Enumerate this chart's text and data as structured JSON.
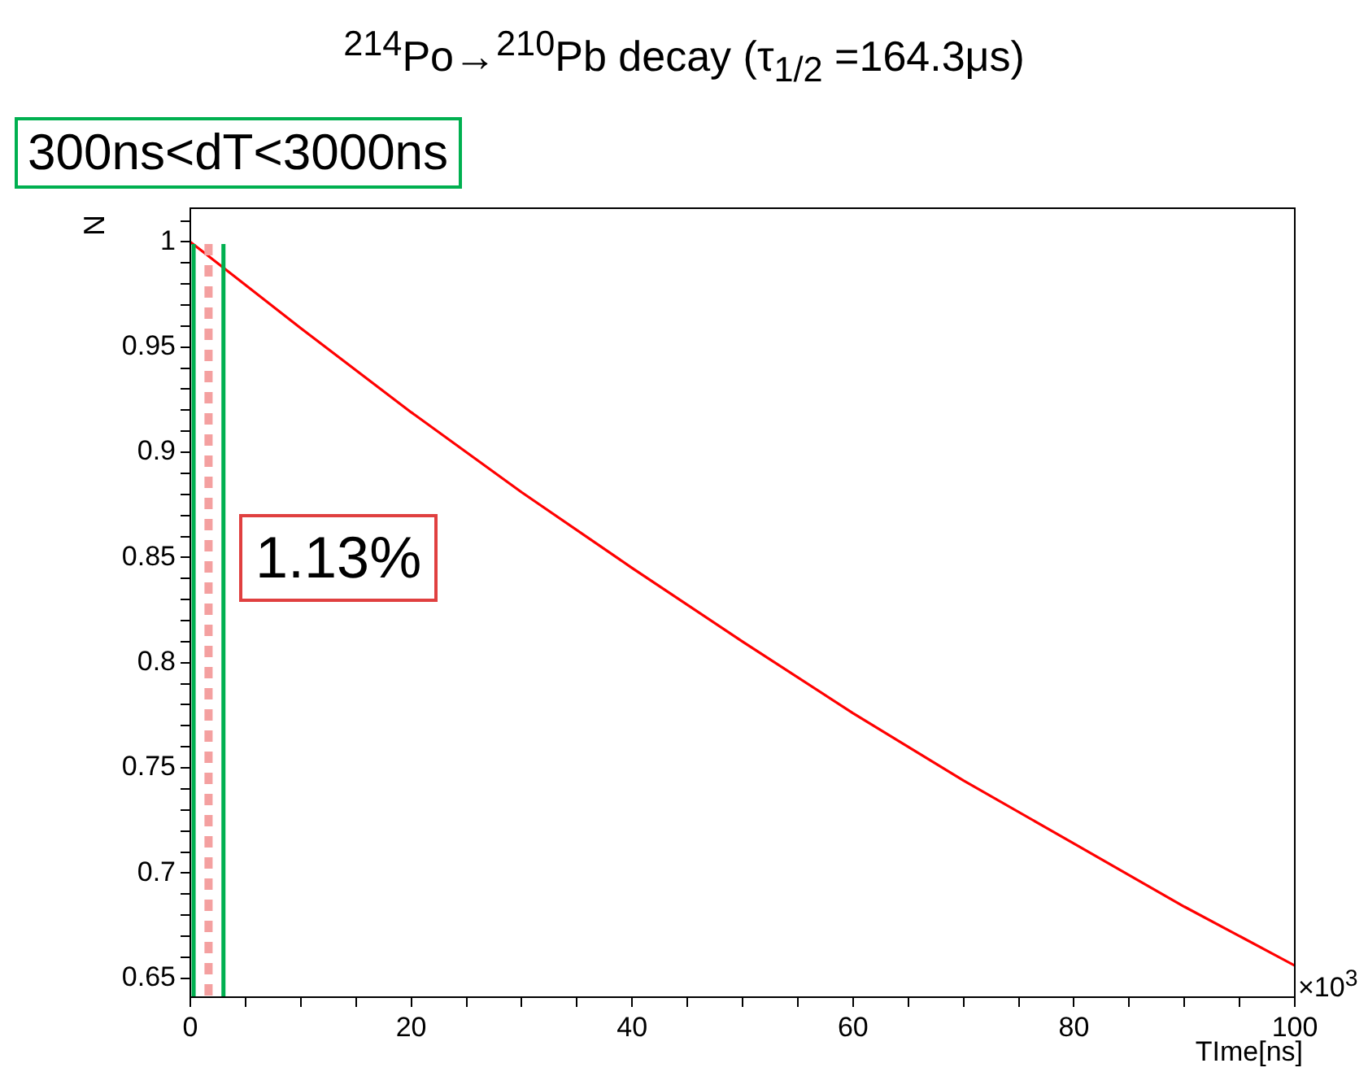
{
  "chart_data": {
    "type": "line",
    "title": "$^{214}$Po→$^{210}$Pb   decay (τ$_{1/2}$ =164.3μs)",
    "xlabel": "TIme[ns]",
    "ylabel": "N",
    "x": [
      0,
      10,
      20,
      30,
      40,
      50,
      60,
      70,
      80,
      90,
      100
    ],
    "series": [
      {
        "color": "#ff0000",
        "values": [
          1,
          0.959,
          0.919,
          0.881,
          0.845,
          0.81,
          0.776,
          0.744,
          0.714,
          0.684,
          0.656
        ]
      }
    ],
    "xlim": [
      0,
      100
    ],
    "ylim": [
      0.641,
      1.016
    ],
    "xticks": [
      0,
      {
        "value": 5,
        "label": null
      },
      {
        "value": 10,
        "label": null
      },
      {
        "value": 15,
        "label": null
      },
      20,
      {
        "value": 25,
        "label": null
      },
      {
        "value": 30,
        "label": null
      },
      {
        "value": 35,
        "label": null
      },
      40,
      {
        "value": 45,
        "label": null
      },
      {
        "value": 50,
        "label": null
      },
      {
        "value": 55,
        "label": null
      },
      60,
      {
        "value": 65,
        "label": null
      },
      {
        "value": 70,
        "label": null
      },
      {
        "value": 75,
        "label": null
      },
      80,
      {
        "value": 85,
        "label": null
      },
      {
        "value": 90,
        "label": null
      },
      {
        "value": 95,
        "label": null
      },
      100
    ],
    "yticks": [
      0.65,
      {
        "value": 0.66,
        "label": null
      },
      {
        "value": 0.67,
        "label": null
      },
      {
        "value": 0.68,
        "label": null
      },
      {
        "value": 0.69,
        "label": null
      },
      0.7,
      {
        "value": 0.71,
        "label": null
      },
      {
        "value": 0.72,
        "label": null
      },
      {
        "value": 0.73,
        "label": null
      },
      {
        "value": 0.74,
        "label": null
      },
      0.75,
      {
        "value": 0.76,
        "label": null
      },
      {
        "value": 0.77,
        "label": null
      },
      {
        "value": 0.78,
        "label": null
      },
      {
        "value": 0.79,
        "label": null
      },
      0.8,
      {
        "value": 0.81,
        "label": null
      },
      {
        "value": 0.82,
        "label": null
      },
      {
        "value": 0.83,
        "label": null
      },
      {
        "value": 0.84,
        "label": null
      },
      0.85,
      {
        "value": 0.86,
        "label": null
      },
      {
        "value": 0.87,
        "label": null
      },
      {
        "value": 0.88,
        "label": null
      },
      {
        "value": 0.89,
        "label": null
      },
      0.9,
      {
        "value": 0.91,
        "label": null
      },
      {
        "value": 0.92,
        "label": null
      },
      {
        "value": 0.93,
        "label": null
      },
      {
        "value": 0.94,
        "label": null
      },
      0.95,
      {
        "value": 0.96,
        "label": null
      },
      {
        "value": 0.97,
        "label": null
      },
      {
        "value": 0.98,
        "label": null
      },
      {
        "value": 0.99,
        "label": null
      },
      1,
      {
        "value": 1.01,
        "label": null
      }
    ],
    "ref_lines": [
      {
        "axis": "x",
        "value": 0.3,
        "color": "#00b050"
      },
      {
        "axis": "x",
        "value": 1.65,
        "color": "#f4a0a0",
        "line_style": "dashed"
      },
      {
        "axis": "x",
        "value": 3,
        "color": "#00b050"
      }
    ],
    "annotations": [
      "300ns<dT<3000ns",
      "1.13%",
      "×10$^{3}$"
    ],
    "grid": false,
    "legend": false,
    "marker": "none",
    "line_style": "solid"
  }
}
